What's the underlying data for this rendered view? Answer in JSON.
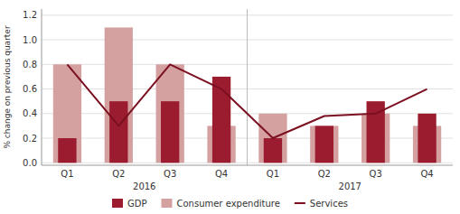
{
  "chart_data": {
    "type": "bar",
    "y_label": "% change on previous quarter",
    "categories": [
      "Q1",
      "Q2",
      "Q3",
      "Q4",
      "Q1",
      "Q2",
      "Q3",
      "Q4"
    ],
    "annotations": [
      "2016",
      "2017"
    ],
    "series": [
      {
        "name": "GDP",
        "type": "bar",
        "color": "#9B1C2E",
        "values": [
          0.2,
          0.5,
          0.5,
          0.7,
          0.2,
          0.3,
          0.5,
          0.4
        ]
      },
      {
        "name": "Consumer expenditure",
        "type": "bar",
        "color": "#D4A0A0",
        "values": [
          0.8,
          1.1,
          0.8,
          0.3,
          0.4,
          0.3,
          0.4,
          0.3
        ]
      },
      {
        "name": "Services",
        "type": "line",
        "color": "#7B1020",
        "values": [
          0.8,
          0.3,
          0.8,
          0.6,
          0.2,
          0.38,
          0.4,
          0.6
        ]
      }
    ],
    "ylim": [
      -0.02,
      1.25
    ],
    "yticks": [
      {
        "value": 0.0,
        "label": "0.0"
      },
      0.2,
      0.4,
      0.6,
      0.8,
      {
        "value": 1.0,
        "label": "1.0"
      },
      1.2
    ],
    "grid": true,
    "legend": "bottom"
  }
}
